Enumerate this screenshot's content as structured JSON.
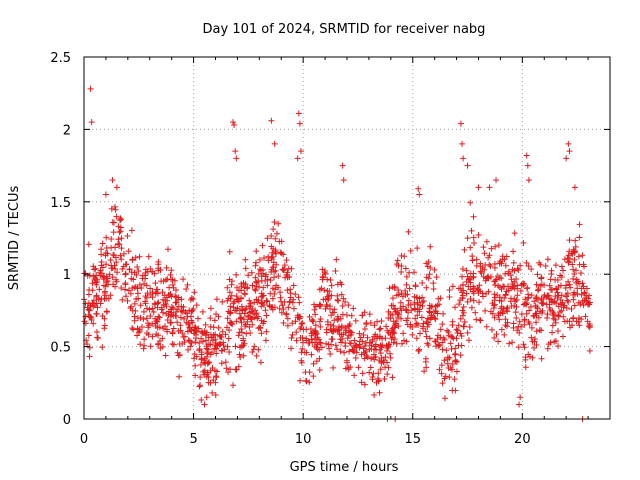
{
  "chart_data": {
    "type": "scatter",
    "title": "Day 101 of 2024, SRMTID for receiver nabg",
    "xlabel": "GPS time / hours",
    "ylabel": "SRMTID / TECUs",
    "xlim": [
      0,
      24
    ],
    "ylim": [
      0,
      2.5
    ],
    "x_ticks": [
      0,
      5,
      10,
      15,
      20
    ],
    "x_tick_labels": [
      "0",
      "5",
      "10",
      "15",
      "20"
    ],
    "y_ticks": [
      0,
      0.5,
      1,
      1.5,
      2,
      2.5
    ],
    "y_tick_labels": [
      "0",
      "0.5",
      "1",
      "1.5",
      "2",
      "2.5"
    ],
    "grid": true,
    "marker": "plus",
    "series": [
      {
        "name": "SRMTID",
        "color": "#e41a1c",
        "envelope": {
          "x": [
            0,
            0.5,
            1,
            1.5,
            2,
            2.5,
            3,
            4,
            5,
            5.5,
            6,
            6.5,
            7,
            8,
            8.5,
            9,
            9.5,
            10,
            10.5,
            11,
            12,
            13,
            13.5,
            14,
            14.5,
            15,
            16,
            16.5,
            17,
            17.5,
            18,
            19,
            19.5,
            20,
            20.5,
            21,
            21.5,
            22,
            22.5,
            23
          ],
          "center": [
            0.85,
            0.8,
            0.95,
            1.25,
            1.0,
            0.85,
            0.75,
            0.75,
            0.6,
            0.45,
            0.5,
            0.6,
            0.75,
            0.8,
            1.05,
            1.05,
            0.8,
            0.5,
            0.5,
            0.75,
            0.6,
            0.5,
            0.45,
            0.6,
            0.9,
            0.8,
            0.7,
            0.45,
            0.5,
            1.0,
            1.0,
            0.85,
            0.9,
            0.75,
            0.75,
            0.85,
            0.75,
            0.95,
            1.0,
            0.75
          ],
          "spread": [
            0.3,
            0.3,
            0.35,
            0.3,
            0.3,
            0.3,
            0.3,
            0.3,
            0.25,
            0.25,
            0.25,
            0.3,
            0.35,
            0.3,
            0.35,
            0.35,
            0.3,
            0.25,
            0.25,
            0.3,
            0.25,
            0.25,
            0.25,
            0.3,
            0.3,
            0.3,
            0.3,
            0.25,
            0.3,
            0.35,
            0.35,
            0.3,
            0.3,
            0.35,
            0.3,
            0.3,
            0.3,
            0.35,
            0.35,
            0.2
          ],
          "count": 1800
        },
        "outliers": [
          [
            0.3,
            2.28
          ],
          [
            0.35,
            2.05
          ],
          [
            1.3,
            1.65
          ],
          [
            1.5,
            1.6
          ],
          [
            1.0,
            1.55
          ],
          [
            6.8,
            2.05
          ],
          [
            6.85,
            2.03
          ],
          [
            6.9,
            1.85
          ],
          [
            6.95,
            1.8
          ],
          [
            8.55,
            2.06
          ],
          [
            8.7,
            1.9
          ],
          [
            9.8,
            2.11
          ],
          [
            9.85,
            2.04
          ],
          [
            9.9,
            1.85
          ],
          [
            9.75,
            1.8
          ],
          [
            11.8,
            1.75
          ],
          [
            11.85,
            1.65
          ],
          [
            15.25,
            1.59
          ],
          [
            15.3,
            1.55
          ],
          [
            17.2,
            2.04
          ],
          [
            17.25,
            1.9
          ],
          [
            17.3,
            1.8
          ],
          [
            17.5,
            1.75
          ],
          [
            18.0,
            1.6
          ],
          [
            18.5,
            1.6
          ],
          [
            18.8,
            1.65
          ],
          [
            20.2,
            1.82
          ],
          [
            20.25,
            1.75
          ],
          [
            20.3,
            1.65
          ],
          [
            22.0,
            1.8
          ],
          [
            22.1,
            1.9
          ],
          [
            22.15,
            1.85
          ],
          [
            22.4,
            1.6
          ],
          [
            5.5,
            0.1
          ],
          [
            5.6,
            0.15
          ],
          [
            19.85,
            0.1
          ],
          [
            19.9,
            0.15
          ],
          [
            13.85,
            0.0
          ],
          [
            14.2,
            0.0
          ],
          [
            22.75,
            0.0
          ]
        ]
      }
    ]
  }
}
